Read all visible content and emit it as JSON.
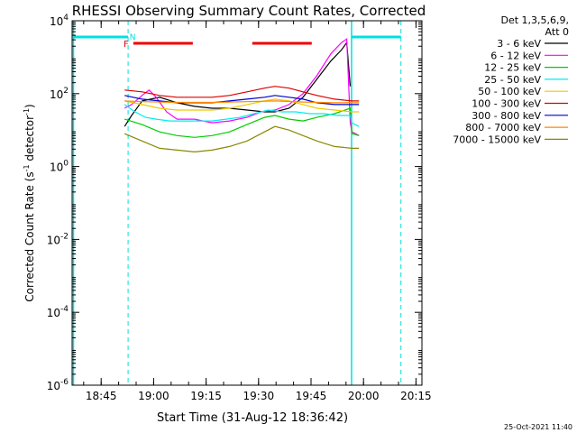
{
  "chart_data": {
    "type": "line",
    "title": "RHESSI Observing Summary Count Rates, Corrected",
    "xlabel": "Start Time (31-Aug-12 18:36:42)",
    "ylabel_main": "Corrected Count Rate (s",
    "ylabel_sup1": "-1",
    "ylabel_mid": " detector",
    "ylabel_sup2": "-1",
    "ylabel_end": ")",
    "x_unit": "minutes since 18:36:42",
    "xlim": [
      0,
      100
    ],
    "ylim_log10": [
      -6,
      4
    ],
    "y_scale": "log",
    "x_ticks": [
      {
        "value": 8.3,
        "label": "18:45"
      },
      {
        "value": 23.3,
        "label": "19:00"
      },
      {
        "value": 38.3,
        "label": "19:15"
      },
      {
        "value": 53.3,
        "label": "19:30"
      },
      {
        "value": 68.3,
        "label": "19:45"
      },
      {
        "value": 83.3,
        "label": "20:00"
      },
      {
        "value": 98.3,
        "label": "20:15"
      }
    ],
    "y_ticks": [
      {
        "exp": 4,
        "base": "10",
        "sup": "4"
      },
      {
        "exp": 2,
        "base": "10",
        "sup": "2"
      },
      {
        "exp": 0,
        "base": "10",
        "sup": "0"
      },
      {
        "exp": -2,
        "base": "10",
        "sup": "-2"
      },
      {
        "exp": -4,
        "base": "10",
        "sup": "-4"
      },
      {
        "exp": -6,
        "base": "10",
        "sup": "-6"
      }
    ],
    "legend_header": [
      "Det 1,3,5,6,9,",
      "Att 0"
    ],
    "series": [
      {
        "name": "3 - 6 keV",
        "color": "#000000",
        "x": [
          15,
          17,
          20,
          25,
          30,
          35,
          40,
          45,
          50,
          55,
          58,
          62,
          66,
          70,
          74,
          77,
          78.5,
          79.5
        ],
        "y": [
          1.1,
          1.4,
          1.8,
          1.9,
          1.75,
          1.65,
          1.6,
          1.6,
          1.55,
          1.5,
          1.5,
          1.6,
          1.9,
          2.4,
          2.9,
          3.2,
          3.4,
          2.2
        ]
      },
      {
        "name": "6 - 12 keV",
        "color": "#ff00ff",
        "x": [
          15,
          17,
          20,
          22,
          24,
          27,
          30,
          35,
          40,
          45,
          50,
          54,
          58,
          62,
          66,
          70,
          74,
          77,
          78.5,
          79.5,
          80,
          82
        ],
        "y": [
          1.6,
          1.7,
          1.95,
          2.1,
          1.9,
          1.5,
          1.3,
          1.3,
          1.2,
          1.25,
          1.35,
          1.5,
          1.55,
          1.7,
          2.0,
          2.5,
          3.1,
          3.4,
          3.5,
          1.2,
          0.95,
          0.85
        ]
      },
      {
        "name": "12 - 25 keV",
        "color": "#00cc00",
        "x": [
          15,
          20,
          25,
          30,
          35,
          40,
          45,
          50,
          55,
          58,
          62,
          66,
          70,
          75,
          79.5,
          80,
          82
        ],
        "y": [
          1.3,
          1.15,
          0.95,
          0.85,
          0.8,
          0.85,
          0.95,
          1.15,
          1.35,
          1.4,
          1.3,
          1.25,
          1.35,
          1.45,
          1.6,
          0.9,
          0.85
        ]
      },
      {
        "name": "25 - 50 keV",
        "color": "#00eeee",
        "x": [
          15,
          18,
          21,
          24,
          28,
          32,
          36,
          40,
          44,
          48,
          52,
          56,
          60,
          64,
          68,
          72,
          76,
          79.5,
          80,
          82
        ],
        "y": [
          1.7,
          1.5,
          1.35,
          1.3,
          1.25,
          1.25,
          1.25,
          1.25,
          1.3,
          1.35,
          1.45,
          1.55,
          1.5,
          1.5,
          1.45,
          1.45,
          1.4,
          1.4,
          1.2,
          1.1
        ]
      },
      {
        "name": "50 - 100 keV",
        "color": "#f0c800",
        "x": [
          15,
          20,
          25,
          30,
          35,
          40,
          45,
          50,
          55,
          58,
          62,
          66,
          70,
          75,
          80,
          82
        ],
        "y": [
          1.8,
          1.7,
          1.6,
          1.55,
          1.55,
          1.55,
          1.6,
          1.7,
          1.8,
          1.85,
          1.8,
          1.7,
          1.6,
          1.55,
          1.5,
          1.5
        ]
      },
      {
        "name": "100 - 300 keV",
        "color": "#dd0000",
        "x": [
          15,
          20,
          25,
          30,
          35,
          40,
          45,
          50,
          55,
          58,
          62,
          66,
          70,
          75,
          80,
          82
        ],
        "y": [
          2.1,
          2.05,
          1.95,
          1.9,
          1.9,
          1.9,
          1.95,
          2.05,
          2.15,
          2.2,
          2.15,
          2.05,
          1.95,
          1.85,
          1.8,
          1.8
        ]
      },
      {
        "name": "300 - 800 keV",
        "color": "#0000cc",
        "x": [
          15,
          20,
          25,
          30,
          35,
          40,
          45,
          50,
          55,
          58,
          62,
          66,
          70,
          75,
          80,
          82
        ],
        "y": [
          1.95,
          1.85,
          1.8,
          1.75,
          1.75,
          1.75,
          1.8,
          1.85,
          1.9,
          1.95,
          1.9,
          1.85,
          1.75,
          1.7,
          1.7,
          1.7
        ]
      },
      {
        "name": "800 - 7000 keV",
        "color": "#ff8800",
        "x": [
          15,
          20,
          30,
          40,
          50,
          58,
          66,
          75,
          82
        ],
        "y": [
          1.8,
          1.78,
          1.76,
          1.76,
          1.78,
          1.8,
          1.77,
          1.75,
          1.75
        ]
      },
      {
        "name": "7000 - 15000 keV",
        "color": "#888800",
        "x": [
          15,
          20,
          25,
          30,
          35,
          40,
          45,
          50,
          55,
          58,
          62,
          66,
          70,
          75,
          80,
          82
        ],
        "y": [
          0.9,
          0.7,
          0.5,
          0.45,
          0.4,
          0.45,
          0.55,
          0.7,
          0.95,
          1.1,
          1.0,
          0.85,
          0.7,
          0.55,
          0.5,
          0.5
        ]
      }
    ],
    "annotations": {
      "flare_label": "F",
      "night_label": "N",
      "flare_intervals": [
        [
          17.5,
          34.5
        ],
        [
          51.5,
          68.5
        ]
      ],
      "night_intervals": [
        [
          0,
          16
        ],
        [
          79.5,
          94
        ]
      ],
      "dashed_boundaries": [
        16,
        94
      ],
      "solid_boundaries": [
        0,
        79.5
      ]
    }
  },
  "footer_timestamp": "25-Oct-2021 11:40",
  "colors": {
    "flare": "#ee0000",
    "night": "#00e0e0",
    "axis": "#000000"
  }
}
